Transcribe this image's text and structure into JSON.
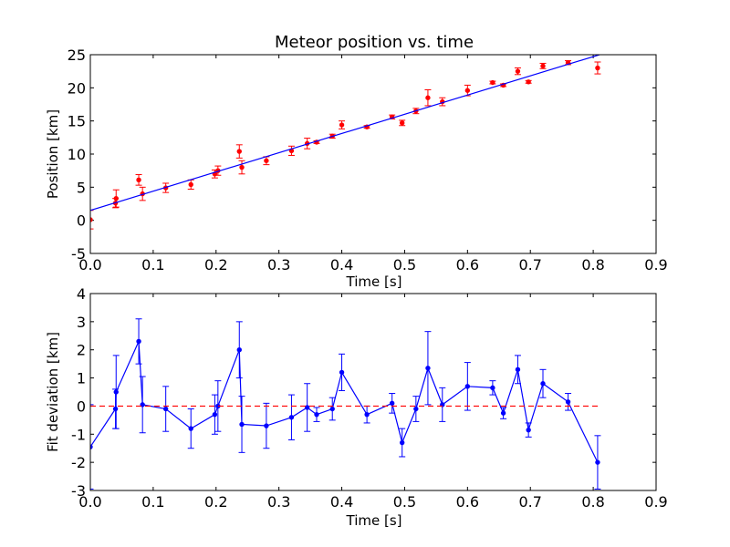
{
  "chart_data": [
    {
      "type": "scatter",
      "title": "Meteor position vs. time",
      "xlabel": "Time [s]",
      "ylabel": "Position [km]",
      "xlim": [
        0.0,
        0.9
      ],
      "ylim": [
        -5,
        25
      ],
      "xticks": [
        "0.0",
        "0.1",
        "0.2",
        "0.3",
        "0.4",
        "0.5",
        "0.6",
        "0.7",
        "0.8",
        "0.9"
      ],
      "yticks": [
        "-5",
        "0",
        "5",
        "10",
        "15",
        "20",
        "25"
      ],
      "colors": {
        "points": "#ff0000",
        "fit": "#0000ff"
      },
      "series": [
        {
          "kind": "errorbar-points",
          "x": [
            0.0,
            0.04,
            0.041,
            0.077,
            0.083,
            0.12,
            0.16,
            0.198,
            0.203,
            0.237,
            0.241,
            0.28,
            0.32,
            0.345,
            0.36,
            0.385,
            0.4,
            0.44,
            0.48,
            0.496,
            0.518,
            0.537,
            0.56,
            0.6,
            0.64,
            0.657,
            0.68,
            0.697,
            0.72,
            0.76,
            0.807
          ],
          "y": [
            0.1,
            2.6,
            3.3,
            6.1,
            4.0,
            4.9,
            5.4,
            7.0,
            7.5,
            10.4,
            8.0,
            9.0,
            10.5,
            11.6,
            11.8,
            12.7,
            14.4,
            14.1,
            15.6,
            14.7,
            16.5,
            18.5,
            17.9,
            19.6,
            20.8,
            20.4,
            22.5,
            20.9,
            23.3,
            23.8,
            23.0
          ],
          "yerr": [
            1.4,
            0.7,
            1.3,
            0.8,
            1.0,
            0.7,
            0.7,
            0.6,
            0.7,
            1.0,
            1.0,
            0.6,
            0.7,
            0.8,
            0.2,
            0.3,
            0.6,
            0.2,
            0.3,
            0.4,
            0.4,
            1.2,
            0.6,
            0.8,
            0.2,
            0.2,
            0.5,
            0.2,
            0.4,
            0.3,
            0.9
          ]
        },
        {
          "kind": "fit-line",
          "x": [
            0.0,
            0.81
          ],
          "y": [
            1.5,
            25.0
          ]
        }
      ]
    },
    {
      "type": "line",
      "title": "",
      "xlabel": "Time [s]",
      "ylabel": "Fit deviation [km]",
      "xlim": [
        0.0,
        0.9
      ],
      "ylim": [
        -3,
        4
      ],
      "xticks": [
        "0.0",
        "0.1",
        "0.2",
        "0.3",
        "0.4",
        "0.5",
        "0.6",
        "0.7",
        "0.8",
        "0.9"
      ],
      "yticks": [
        "-3",
        "-2",
        "-1",
        "0",
        "1",
        "2",
        "3",
        "4"
      ],
      "colors": {
        "series": "#0000ff",
        "zero": "#ff0000"
      },
      "series": [
        {
          "kind": "errorbar-line",
          "x": [
            0.0,
            0.04,
            0.041,
            0.077,
            0.083,
            0.12,
            0.16,
            0.198,
            0.203,
            0.237,
            0.241,
            0.28,
            0.32,
            0.345,
            0.36,
            0.385,
            0.4,
            0.44,
            0.48,
            0.496,
            0.518,
            0.537,
            0.56,
            0.6,
            0.64,
            0.657,
            0.68,
            0.697,
            0.72,
            0.76,
            0.807
          ],
          "y": [
            -1.45,
            -0.1,
            0.5,
            2.3,
            0.05,
            -0.1,
            -0.8,
            -0.3,
            0.0,
            2.0,
            -0.65,
            -0.7,
            -0.4,
            -0.05,
            -0.3,
            -0.1,
            1.2,
            -0.3,
            0.1,
            -1.3,
            -0.1,
            1.35,
            0.05,
            0.7,
            0.65,
            -0.25,
            1.3,
            -0.85,
            0.8,
            0.15,
            -2.0
          ],
          "yerr": [
            1.5,
            0.7,
            1.3,
            0.8,
            1.0,
            0.8,
            0.7,
            0.7,
            0.9,
            1.0,
            1.0,
            0.8,
            0.8,
            0.85,
            0.25,
            0.4,
            0.65,
            0.3,
            0.35,
            0.5,
            0.45,
            1.3,
            0.6,
            0.85,
            0.25,
            0.2,
            0.5,
            0.25,
            0.5,
            0.3,
            0.95
          ]
        },
        {
          "kind": "zero-line",
          "x": [
            0.0,
            0.81
          ],
          "y": [
            0,
            0
          ]
        }
      ]
    }
  ]
}
